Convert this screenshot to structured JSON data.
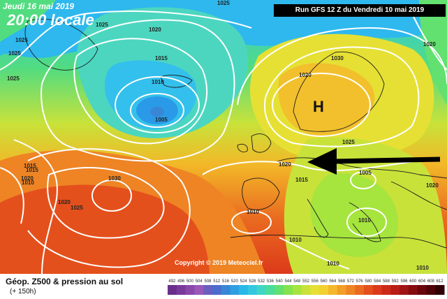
{
  "header": {
    "date": "Jeudi 16 mai 2019",
    "time": "20:00 locale",
    "run": "Run GFS 12 Z du Vendredi 10 mai 2019"
  },
  "footer": {
    "title": "Géop. Z500 & pression au sol",
    "subtitle": "(+ 150h)",
    "copyright": "Copyright © 2019 Meteociel.fr"
  },
  "map": {
    "high_label": "H",
    "isobar_labels": [
      "1025",
      "1025",
      "1020",
      "1015",
      "1010",
      "1005",
      "1025",
      "1020",
      "1025",
      "1020",
      "1020",
      "1030",
      "1025",
      "1020",
      "1015",
      "1015",
      "1010",
      "1030",
      "1025",
      "1020",
      "1010",
      "1025",
      "1020",
      "1015",
      "1010",
      "1005",
      "1010",
      "1010",
      "1010"
    ]
  },
  "scale": {
    "labels": [
      "492",
      "496",
      "500",
      "504",
      "508",
      "512",
      "516",
      "520",
      "524",
      "528",
      "532",
      "536",
      "540",
      "544",
      "548",
      "552",
      "556",
      "560",
      "564",
      "568",
      "572",
      "576",
      "580",
      "584",
      "588",
      "592",
      "596",
      "600",
      "604",
      "608",
      "612"
    ],
    "colors": [
      "#6a2f8c",
      "#7a3a9a",
      "#8a48aa",
      "#9a58b8",
      "#6a5fbf",
      "#4a6ccc",
      "#3a86d6",
      "#2e9fe0",
      "#29b9e8",
      "#34c8e0",
      "#40d6c4",
      "#4cdc9c",
      "#62e070",
      "#82e250",
      "#a6e43e",
      "#c8e23a",
      "#e6e034",
      "#f2d030",
      "#f4b82c",
      "#f29e28",
      "#ee8424",
      "#ea6a20",
      "#e4501c",
      "#dc3a1a",
      "#cc2a18",
      "#b81e16",
      "#a01414",
      "#860c10",
      "#6a060c",
      "#4e0308",
      "#300004"
    ]
  }
}
